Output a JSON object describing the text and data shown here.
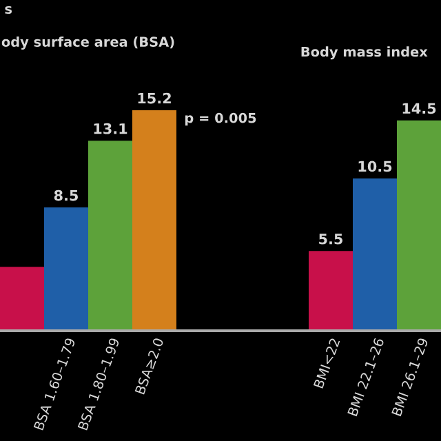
{
  "chart_data": {
    "type": "bar",
    "categories": [
      null,
      "BSA 1.60–1.79",
      "BSA 1.80–1.99",
      "BSA≥2.0",
      null,
      null,
      null,
      "BMI<22",
      "BMI 22.1–26",
      "BMI 26.1–29"
    ],
    "values": [
      4.4,
      8.5,
      13.1,
      15.2,
      null,
      null,
      null,
      5.5,
      10.5,
      14.5
    ],
    "colors": [
      "#c8104a",
      "#1f5fa8",
      "#5da23a",
      "#d4801c",
      null,
      null,
      null,
      "#c8104a",
      "#1f5fa8",
      "#5da23a"
    ],
    "value_labels": [
      null,
      "8.5",
      "13.1",
      "15.2",
      null,
      null,
      null,
      "5.5",
      "10.5",
      "14.5"
    ],
    "annotations": [
      "s",
      "ody surface area (BSA)",
      "Body mass index",
      "p = 0.005"
    ]
  }
}
